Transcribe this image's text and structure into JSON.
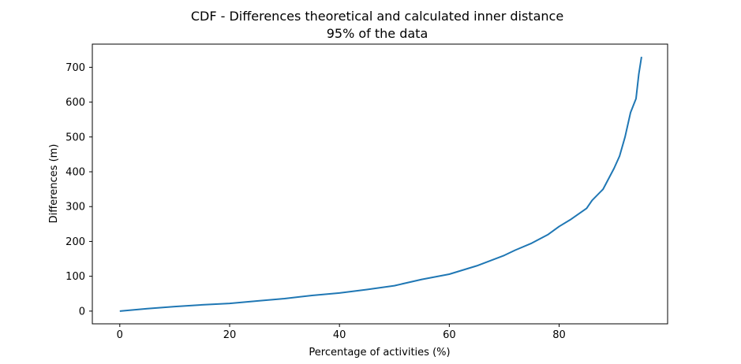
{
  "chart_data": {
    "type": "line",
    "title": "CDF - Differences theoretical and calculated inner distance",
    "subtitle": "95% of the data",
    "xlabel": "Percentage of activities (%)",
    "ylabel": "Differences (m)",
    "xlim": [
      -5,
      99.75
    ],
    "ylim": [
      -36.5,
      766.5
    ],
    "xticks": [
      0,
      20,
      40,
      60,
      80
    ],
    "yticks": [
      0,
      100,
      200,
      300,
      400,
      500,
      600,
      700
    ],
    "xtick_labels": [
      "0",
      "20",
      "40",
      "60",
      "80"
    ],
    "ytick_labels": [
      "0",
      "100",
      "200",
      "300",
      "400",
      "500",
      "600",
      "700"
    ],
    "grid": false,
    "series": [
      {
        "color": "#1f77b4",
        "x": [
          0,
          5,
          10,
          15,
          20,
          25,
          30,
          35,
          40,
          45,
          50,
          55,
          60,
          65,
          70,
          72,
          75,
          78,
          80,
          82,
          85,
          86,
          88,
          90,
          91,
          92,
          93,
          94,
          94.5,
          95
        ],
        "values": [
          0,
          7,
          13,
          18,
          22,
          29,
          36,
          45,
          52,
          62,
          73,
          91,
          106,
          130,
          160,
          175,
          195,
          220,
          243,
          262,
          295,
          318,
          350,
          410,
          445,
          500,
          570,
          610,
          680,
          730
        ]
      }
    ]
  }
}
